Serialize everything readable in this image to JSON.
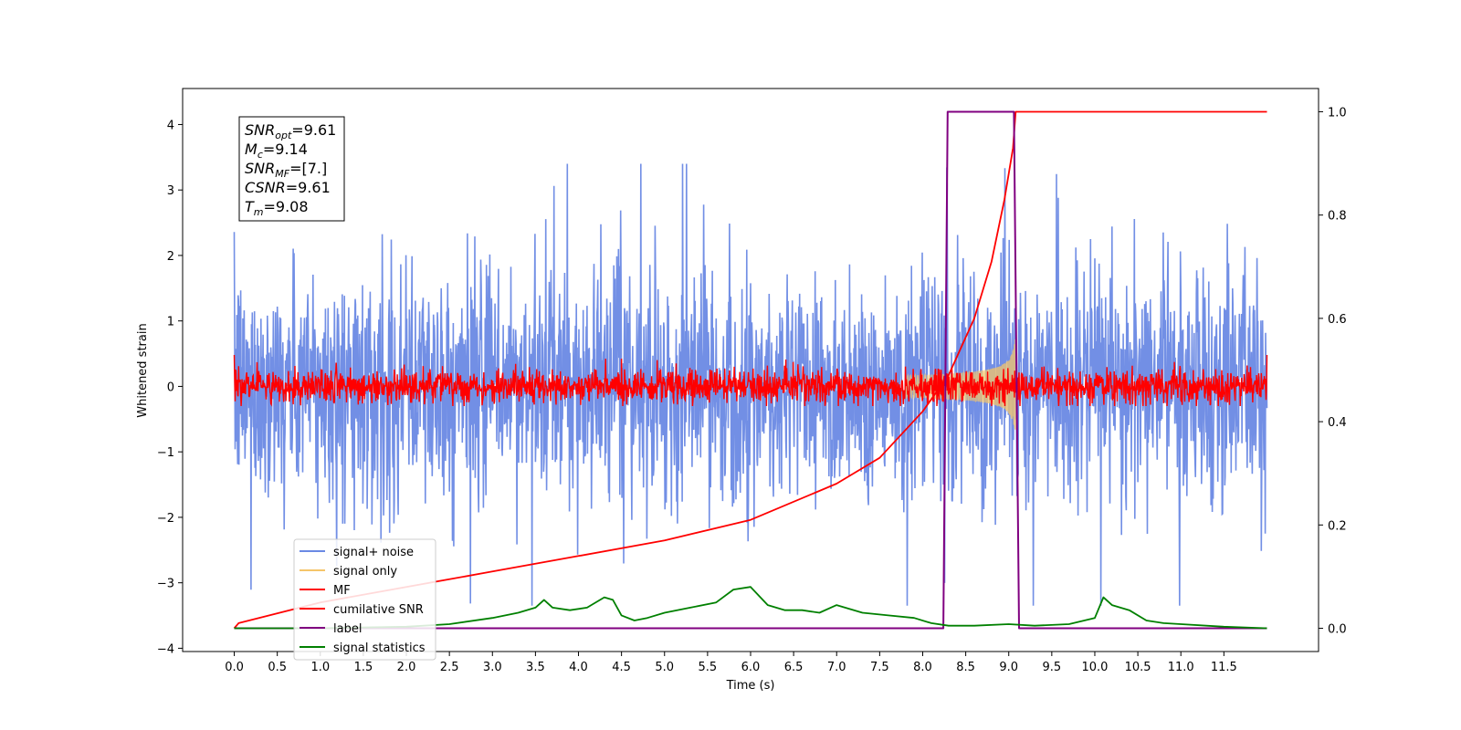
{
  "chart_data": {
    "type": "line",
    "xlabel": "Time (s)",
    "ylabel": "Whitened strain",
    "xlim": [
      -0.6,
      12.6
    ],
    "ylim": [
      -4.05,
      4.55
    ],
    "y2lim": [
      -0.045,
      1.045
    ],
    "x_ticks": [
      0.0,
      0.5,
      1.0,
      1.5,
      2.0,
      2.5,
      3.0,
      3.5,
      4.0,
      4.5,
      5.0,
      5.5,
      6.0,
      6.5,
      7.0,
      7.5,
      8.0,
      8.5,
      9.0,
      9.5,
      10.0,
      10.5,
      11.0,
      11.5
    ],
    "x_tick_labels": [
      "0.0",
      "0.5",
      "1.0",
      "1.5",
      "2.0",
      "2.5",
      "3.0",
      "3.5",
      "4.0",
      "4.5",
      "5.0",
      "5.5",
      "6.0",
      "6.5",
      "7.0",
      "7.5",
      "8.0",
      "8.5",
      "9.0",
      "9.5",
      "10.0",
      "10.5",
      "11.0",
      "11.5"
    ],
    "y_ticks": [
      -4,
      -3,
      -2,
      -1,
      0,
      1,
      2,
      3,
      4
    ],
    "y_tick_labels": [
      "−4",
      "−3",
      "−2",
      "−1",
      "0",
      "1",
      "2",
      "3",
      "4"
    ],
    "y2_ticks": [
      0.0,
      0.2,
      0.4,
      0.6,
      0.8,
      1.0
    ],
    "y2_tick_labels": [
      "0.0",
      "0.2",
      "0.4",
      "0.6",
      "0.8",
      "1.0"
    ],
    "grid": false,
    "legend_position": "lower-left",
    "series": [
      {
        "name": "signal+ noise",
        "axis": "left",
        "color": "#6a89e4",
        "description": "noise band approx ±1.4 with spikes to ±3.4, from t=0 to t=12"
      },
      {
        "name": "signal only",
        "axis": "left",
        "color": "#f5c56a",
        "chirp_start": 7.8,
        "chirp_end": 9.08,
        "peak_amplitude": 0.75
      },
      {
        "name": "MF",
        "axis": "left",
        "color": "#ff0000",
        "description": "matched filter output, band approx ±0.3"
      },
      {
        "name": "cumilative SNR",
        "axis": "right",
        "color": "#ff0000",
        "x": [
          0.0,
          0.05,
          1.0,
          2.0,
          3.0,
          4.0,
          5.0,
          6.0,
          7.0,
          7.5,
          8.0,
          8.3,
          8.6,
          8.8,
          8.95,
          9.05,
          9.08,
          12.0
        ],
        "y": [
          0.0,
          0.01,
          0.05,
          0.08,
          0.11,
          0.14,
          0.17,
          0.21,
          0.28,
          0.33,
          0.42,
          0.49,
          0.6,
          0.71,
          0.83,
          0.93,
          1.0,
          1.0
        ]
      },
      {
        "name": "label",
        "axis": "right",
        "color": "#800080",
        "x": [
          0.0,
          8.24,
          8.29,
          9.06,
          9.12,
          12.0
        ],
        "y": [
          0.0,
          0.0,
          1.0,
          1.0,
          0.0,
          0.0
        ]
      },
      {
        "name": "signal statistics",
        "axis": "right",
        "color": "#008000",
        "x": [
          0.0,
          1.0,
          2.0,
          2.5,
          3.0,
          3.3,
          3.5,
          3.6,
          3.7,
          3.9,
          4.1,
          4.3,
          4.4,
          4.5,
          4.65,
          4.8,
          5.0,
          5.3,
          5.6,
          5.8,
          6.0,
          6.2,
          6.4,
          6.6,
          6.8,
          7.0,
          7.3,
          7.6,
          7.9,
          8.1,
          8.3,
          8.6,
          9.0,
          9.3,
          9.7,
          10.0,
          10.1,
          10.2,
          10.4,
          10.6,
          10.8,
          11.0,
          11.5,
          12.0
        ],
        "y": [
          0.0,
          0.0,
          0.003,
          0.008,
          0.02,
          0.03,
          0.04,
          0.055,
          0.04,
          0.035,
          0.04,
          0.06,
          0.055,
          0.025,
          0.015,
          0.02,
          0.03,
          0.04,
          0.05,
          0.075,
          0.08,
          0.045,
          0.035,
          0.035,
          0.03,
          0.045,
          0.03,
          0.025,
          0.02,
          0.01,
          0.005,
          0.005,
          0.008,
          0.005,
          0.008,
          0.02,
          0.06,
          0.045,
          0.035,
          0.015,
          0.01,
          0.008,
          0.003,
          0.0
        ]
      }
    ],
    "annotation_box": {
      "lines": [
        {
          "base": "SNR",
          "sub": "opt",
          "value": "=9.61"
        },
        {
          "base": "M",
          "sub": "c",
          "value": "=9.14"
        },
        {
          "base": "SNR",
          "sub": "MF",
          "value": "=[7.]"
        },
        {
          "base": "CSNR",
          "sub": "",
          "value": "=9.61"
        },
        {
          "base": "T",
          "sub": "m",
          "value": "=9.08"
        }
      ]
    }
  }
}
